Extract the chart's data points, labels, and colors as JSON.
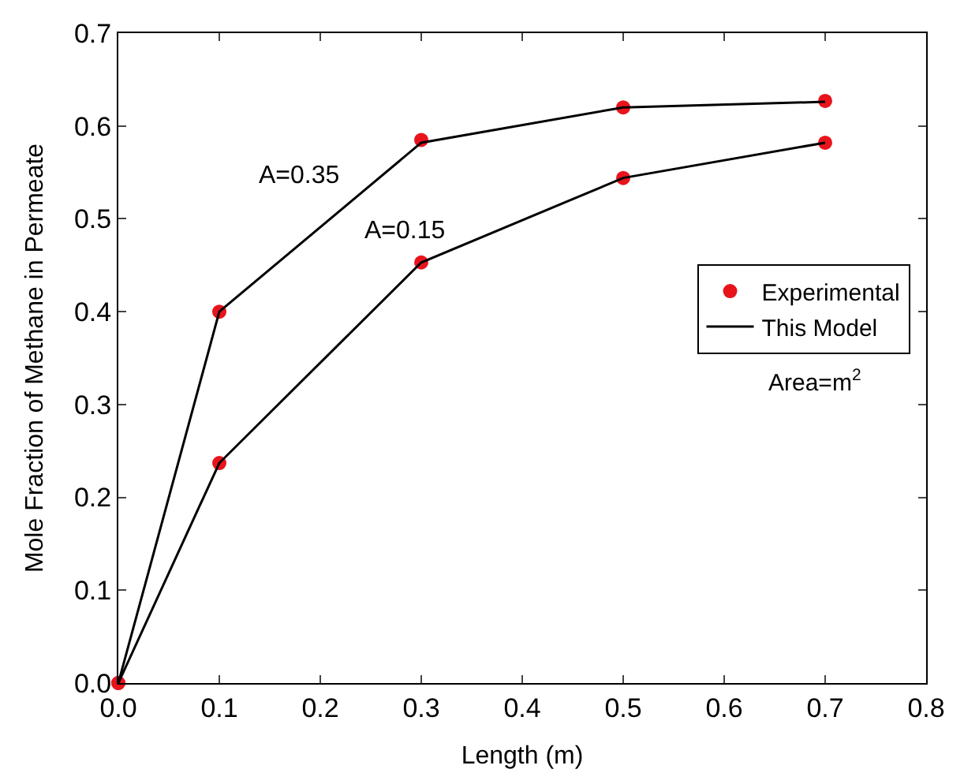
{
  "chart_data": {
    "type": "line",
    "xlabel": "Length (m)",
    "ylabel": "Mole Fraction of Methane in Permeate",
    "series": [
      {
        "name": "Experimental",
        "type": "scatter",
        "marker": "circle",
        "color": "#e8141c",
        "x": [
          0,
          0.1,
          0.3,
          0.5,
          0.7
        ],
        "values": [
          0,
          0.4,
          0.585,
          0.62,
          0.627
        ]
      },
      {
        "type": "scatter",
        "marker": "circle",
        "color": "#e8141c",
        "x": [
          0,
          0.1,
          0.3,
          0.5,
          0.7
        ],
        "values": [
          0,
          0.237,
          0.453,
          0.544,
          0.582
        ]
      },
      {
        "name": "This Model",
        "color": "#000000",
        "x": [
          0,
          0.1,
          0.3,
          0.5,
          0.7
        ],
        "values": [
          0,
          0.4,
          0.582,
          0.62,
          0.626
        ]
      },
      {
        "color": "#000000",
        "x": [
          0,
          0.1,
          0.3,
          0.5,
          0.7
        ],
        "values": [
          0,
          0.237,
          0.453,
          0.544,
          0.582
        ]
      }
    ],
    "annotations": [
      "A=0.35",
      "A=0.15",
      "Area=m$^{2}$"
    ],
    "line_style": "solid",
    "legend": "right",
    "xlim": [
      0,
      0.8
    ],
    "ylim": [
      0,
      0.7
    ],
    "xticks": [
      {
        "value": 0,
        "label": "0.0"
      },
      0.1,
      0.2,
      0.3,
      0.4,
      0.5,
      0.6,
      0.7,
      0.8
    ],
    "yticks": [
      {
        "value": 0,
        "label": "0.0"
      },
      0.1,
      0.2,
      0.3,
      0.4,
      0.5,
      0.6,
      0.7
    ]
  }
}
